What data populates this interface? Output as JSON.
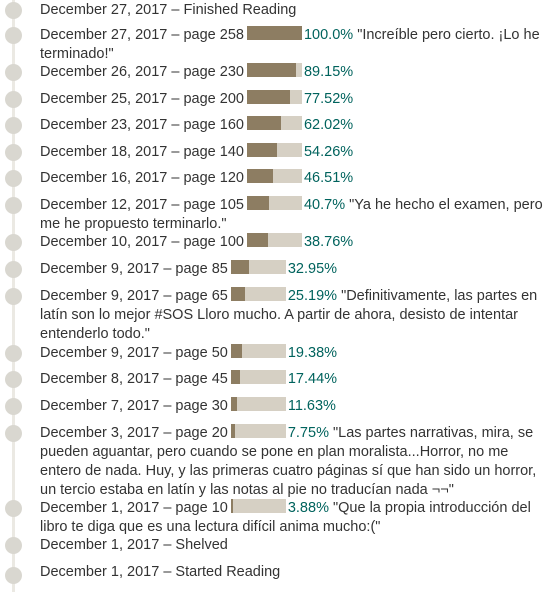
{
  "entries": [
    {
      "date": "December 27, 2017",
      "event": "Finished Reading"
    },
    {
      "date": "December 27, 2017",
      "page": "page 258",
      "progress": 100.0,
      "percent": "100.0%",
      "note": "\"Increíble pero cierto. ¡Lo he terminado!\""
    },
    {
      "date": "December 26, 2017",
      "page": "page 230",
      "progress": 89.15,
      "percent": "89.15%"
    },
    {
      "date": "December 25, 2017",
      "page": "page 200",
      "progress": 77.52,
      "percent": "77.52%"
    },
    {
      "date": "December 23, 2017",
      "page": "page 160",
      "progress": 62.02,
      "percent": "62.02%"
    },
    {
      "date": "December 18, 2017",
      "page": "page 140",
      "progress": 54.26,
      "percent": "54.26%"
    },
    {
      "date": "December 16, 2017",
      "page": "page 120",
      "progress": 46.51,
      "percent": "46.51%"
    },
    {
      "date": "December 12, 2017",
      "page": "page 105",
      "progress": 40.7,
      "percent": "40.7%",
      "note": "\"Ya he hecho el examen, pero me he propuesto terminarlo.\""
    },
    {
      "date": "December 10, 2017",
      "page": "page 100",
      "progress": 38.76,
      "percent": "38.76%"
    },
    {
      "date": "December 9, 2017",
      "page": "page 85",
      "progress": 32.95,
      "percent": "32.95%"
    },
    {
      "date": "December 9, 2017",
      "page": "page 65",
      "progress": 25.19,
      "percent": "25.19%",
      "note": "\"Definitivamente, las partes en latín son lo mejor #SOS Lloro mucho. A partir de ahora, desisto de intentar entenderlo todo.\""
    },
    {
      "date": "December 9, 2017",
      "page": "page 50",
      "progress": 19.38,
      "percent": "19.38%"
    },
    {
      "date": "December 8, 2017",
      "page": "page 45",
      "progress": 17.44,
      "percent": "17.44%"
    },
    {
      "date": "December 7, 2017",
      "page": "page 30",
      "progress": 11.63,
      "percent": "11.63%"
    },
    {
      "date": "December 3, 2017",
      "page": "page 20",
      "progress": 7.75,
      "percent": "7.75%",
      "note": "\"Las partes narrativas, mira, se pueden aguantar, pero cuando se pone en plan moralista...Horror, no me entero de nada. Huy, y las primeras cuatro páginas sí que han sido un horror, un tercio estaba en latín y las notas al pie no traducían nada ¬¬\""
    },
    {
      "date": "December 1, 2017",
      "page": "page 10",
      "progress": 3.88,
      "percent": "3.88%",
      "note": "\"Que la propia introducción del libro te diga que es una lectura difícil anima mucho:(\""
    },
    {
      "date": "December 1, 2017",
      "event": "Shelved"
    },
    {
      "date": "December 1, 2017",
      "event": "Started Reading"
    }
  ],
  "separator": " – ",
  "colors": {
    "bar_fill": "#8d7d62",
    "bar_track": "#d6d0c4",
    "percent_text": "#00635d",
    "timeline_dot": "#d9d7d0"
  }
}
